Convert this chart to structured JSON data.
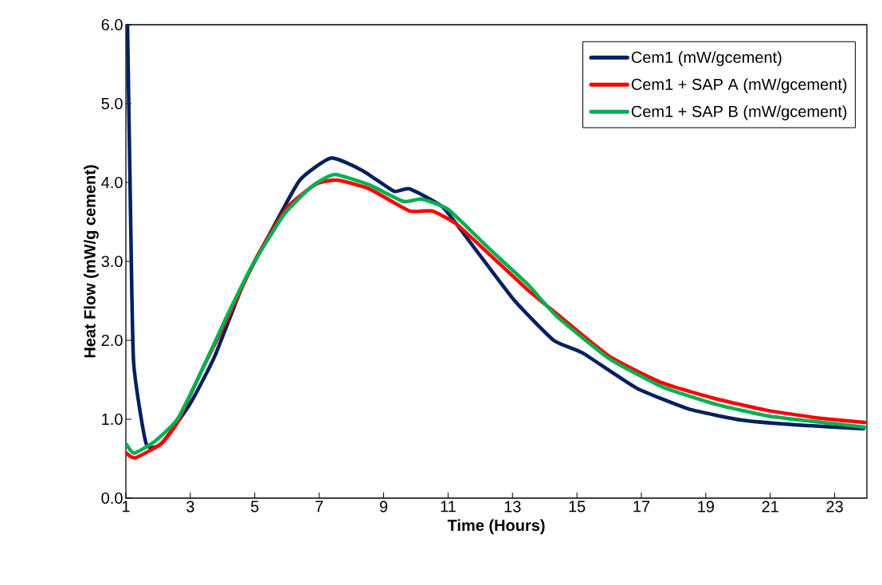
{
  "chart_data": {
    "type": "line",
    "xlabel": "Time (Hours)",
    "ylabel": "Heat Flow (mW/g cement)",
    "xlim": [
      1,
      24
    ],
    "xticks": [
      1,
      3,
      5,
      7,
      9,
      11,
      13,
      15,
      17,
      19,
      21,
      23
    ],
    "ylim": [
      0,
      6
    ],
    "yticks": [
      {
        "value": 0,
        "label": "0.0"
      },
      {
        "value": 1,
        "label": "1.0"
      },
      {
        "value": 2,
        "label": "2.0"
      },
      {
        "value": 3,
        "label": "3.0"
      },
      {
        "value": 4,
        "label": "4.0"
      },
      {
        "value": 5,
        "label": "5.0"
      },
      {
        "value": 6,
        "label": "6.0"
      }
    ],
    "grid": false,
    "legend": "top right",
    "marker": "none",
    "line_style": "solid",
    "series": [
      {
        "name": "Cem1 (mW/gcement)",
        "color": "#002060",
        "x": [
          1.05,
          1.14,
          1.24,
          1.63,
          2.1,
          3.0,
          3.76,
          4.65,
          5.52,
          6.4,
          7.37,
          8.35,
          9.32,
          9.8,
          10.83,
          11.8,
          13.05,
          14.28,
          15.18,
          16.83,
          18.47,
          20.1,
          21.76,
          23.9
        ],
        "values": [
          6.0,
          3.72,
          1.72,
          0.69,
          0.69,
          1.2,
          1.8,
          2.72,
          3.39,
          4.03,
          4.31,
          4.15,
          3.89,
          3.92,
          3.69,
          3.18,
          2.51,
          2.0,
          1.84,
          1.4,
          1.13,
          0.99,
          0.93,
          0.88
        ]
      },
      {
        "name": "Cem1 + SAP A (mW/gcement)",
        "color": "#ff0000",
        "x": [
          1.02,
          1.29,
          2.1,
          2.6,
          3.38,
          4.16,
          5.04,
          6.0,
          6.9,
          7.57,
          8.55,
          9.8,
          10.5,
          11.24,
          12.23,
          13.47,
          14.36,
          16.0,
          17.65,
          19.3,
          20.94,
          22.6,
          23.93
        ],
        "values": [
          0.57,
          0.51,
          0.69,
          0.96,
          1.64,
          2.28,
          3.04,
          3.68,
          3.98,
          4.03,
          3.92,
          3.64,
          3.64,
          3.48,
          3.11,
          2.64,
          2.34,
          1.8,
          1.46,
          1.26,
          1.11,
          1.01,
          0.96
        ]
      },
      {
        "name": "Cem1 + SAP B (mW/gcement)",
        "color": "#00b050",
        "x": [
          1.02,
          1.26,
          1.9,
          2.6,
          3.29,
          4.06,
          4.94,
          5.92,
          6.8,
          7.48,
          8.55,
          9.62,
          10.17,
          11.0,
          12.23,
          13.47,
          14.36,
          16.0,
          17.65,
          19.3,
          20.94,
          22.6,
          23.93
        ],
        "values": [
          0.68,
          0.57,
          0.72,
          1.0,
          1.56,
          2.24,
          2.96,
          3.6,
          3.96,
          4.1,
          3.97,
          3.76,
          3.79,
          3.66,
          3.18,
          2.71,
          2.31,
          1.77,
          1.41,
          1.19,
          1.04,
          0.96,
          0.9
        ]
      }
    ]
  }
}
